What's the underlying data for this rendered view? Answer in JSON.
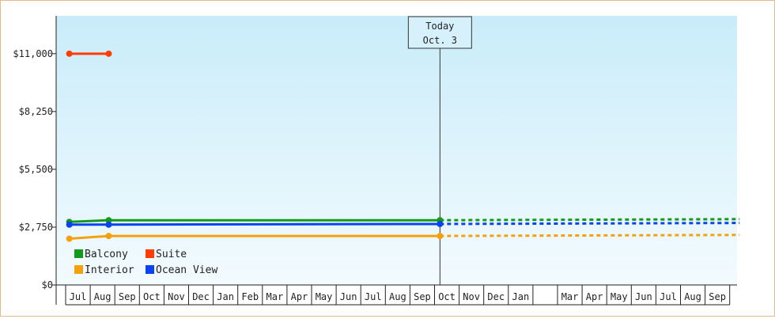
{
  "chart_data": {
    "type": "line",
    "y_ticks": [
      "$0",
      "$2,750",
      "$5,500",
      "$8,250",
      "$11,000"
    ],
    "y_tick_values": [
      0,
      2750,
      5500,
      8250,
      11000
    ],
    "ylim": [
      0,
      12800
    ],
    "months": [
      {
        "label": "Jul"
      },
      {
        "label": "Aug"
      },
      {
        "label": "Sep"
      },
      {
        "label": "Oct"
      },
      {
        "label": "Nov"
      },
      {
        "label": "Dec"
      },
      {
        "label": "Jan"
      },
      {
        "label": "Feb"
      },
      {
        "label": "Mar"
      },
      {
        "label": "Apr"
      },
      {
        "label": "May"
      },
      {
        "label": "Jun"
      },
      {
        "label": "Jul"
      },
      {
        "label": "Aug"
      },
      {
        "label": "Sep"
      },
      {
        "label": "Oct"
      },
      {
        "label": "Nov"
      },
      {
        "label": "Dec"
      },
      {
        "label": "Jan"
      },
      {
        "label": ""
      },
      {
        "label": "Mar"
      },
      {
        "label": "Apr"
      },
      {
        "label": "May"
      },
      {
        "label": "Jun"
      },
      {
        "label": "Jul"
      },
      {
        "label": "Aug"
      },
      {
        "label": "Sep"
      }
    ],
    "today_marker": {
      "line1": "Today",
      "line2": "Oct. 3",
      "month_index": 14.72
    },
    "grid": false,
    "legend_position": "bottom-left",
    "series": [
      {
        "name": "Balcony",
        "color": "#139a1a",
        "points": [
          [
            -0.35,
            3000
          ],
          [
            1.25,
            3080
          ],
          [
            14.72,
            3080
          ]
        ],
        "projected": [
          [
            14.72,
            3080
          ],
          [
            26.9,
            3130
          ]
        ]
      },
      {
        "name": "Suite",
        "color": "#ff3d00",
        "points": [
          [
            -0.35,
            11000
          ],
          [
            1.25,
            11000
          ]
        ],
        "projected": []
      },
      {
        "name": "Interior",
        "color": "#f5a10d",
        "points": [
          [
            -0.35,
            2200
          ],
          [
            1.25,
            2330
          ],
          [
            14.72,
            2330
          ]
        ],
        "projected": [
          [
            14.72,
            2330
          ],
          [
            26.9,
            2380
          ]
        ]
      },
      {
        "name": "Ocean View",
        "color": "#0a44f0",
        "points": [
          [
            -0.35,
            2870
          ],
          [
            1.25,
            2870
          ],
          [
            14.72,
            2900
          ]
        ],
        "projected": [
          [
            14.72,
            2900
          ],
          [
            26.9,
            2950
          ]
        ]
      }
    ]
  }
}
